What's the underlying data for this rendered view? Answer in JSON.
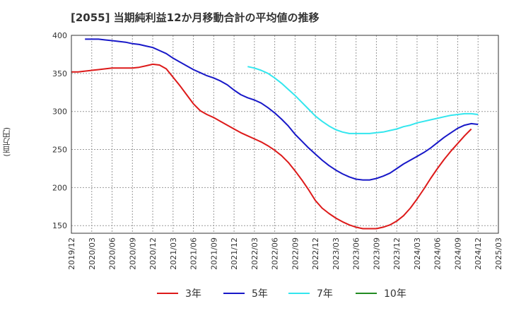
{
  "title": "[2055]  当期純利益12か月移動合計の平均値の推移",
  "chart_data": {
    "type": "line",
    "title": "[2055]  当期純利益12か月移動合計の平均値の推移",
    "ylabel": "(百万円)",
    "xlabel": "",
    "ylim": [
      140,
      400
    ],
    "yticks": [
      150,
      200,
      250,
      300,
      350,
      400
    ],
    "xlim": [
      "2019-12",
      "2025-03"
    ],
    "x_tick_labels": [
      "2019/12",
      "2020/03",
      "2020/06",
      "2020/09",
      "2020/12",
      "2021/03",
      "2021/06",
      "2021/09",
      "2021/12",
      "2022/03",
      "2022/06",
      "2022/09",
      "2022/12",
      "2023/03",
      "2023/06",
      "2023/09",
      "2023/12",
      "2024/03",
      "2024/06",
      "2024/09",
      "2024/12",
      "2025/03"
    ],
    "grid": true,
    "legend_position": "bottom",
    "series": [
      {
        "name": "3年",
        "color": "#dd1a1a",
        "points": [
          [
            "2019-12",
            352
          ],
          [
            "2020-01",
            352
          ],
          [
            "2020-02",
            353
          ],
          [
            "2020-03",
            354
          ],
          [
            "2020-04",
            355
          ],
          [
            "2020-05",
            356
          ],
          [
            "2020-06",
            357
          ],
          [
            "2020-07",
            357
          ],
          [
            "2020-08",
            357
          ],
          [
            "2020-09",
            357
          ],
          [
            "2020-10",
            358
          ],
          [
            "2020-11",
            360
          ],
          [
            "2020-12",
            362
          ],
          [
            "2021-01",
            361
          ],
          [
            "2021-02",
            356
          ],
          [
            "2021-03",
            345
          ],
          [
            "2021-04",
            334
          ],
          [
            "2021-05",
            322
          ],
          [
            "2021-06",
            310
          ],
          [
            "2021-07",
            301
          ],
          [
            "2021-08",
            296
          ],
          [
            "2021-09",
            292
          ],
          [
            "2021-10",
            287
          ],
          [
            "2021-11",
            282
          ],
          [
            "2021-12",
            277
          ],
          [
            "2022-01",
            272
          ],
          [
            "2022-02",
            268
          ],
          [
            "2022-03",
            264
          ],
          [
            "2022-04",
            260
          ],
          [
            "2022-05",
            255
          ],
          [
            "2022-06",
            249
          ],
          [
            "2022-07",
            242
          ],
          [
            "2022-08",
            233
          ],
          [
            "2022-09",
            222
          ],
          [
            "2022-10",
            210
          ],
          [
            "2022-11",
            197
          ],
          [
            "2022-12",
            183
          ],
          [
            "2023-01",
            173
          ],
          [
            "2023-02",
            166
          ],
          [
            "2023-03",
            160
          ],
          [
            "2023-04",
            155
          ],
          [
            "2023-05",
            151
          ],
          [
            "2023-06",
            148
          ],
          [
            "2023-07",
            146
          ],
          [
            "2023-08",
            146
          ],
          [
            "2023-09",
            146
          ],
          [
            "2023-10",
            148
          ],
          [
            "2023-11",
            151
          ],
          [
            "2023-12",
            156
          ],
          [
            "2024-01",
            163
          ],
          [
            "2024-02",
            173
          ],
          [
            "2024-03",
            185
          ],
          [
            "2024-04",
            198
          ],
          [
            "2024-05",
            212
          ],
          [
            "2024-06",
            225
          ],
          [
            "2024-07",
            237
          ],
          [
            "2024-08",
            248
          ],
          [
            "2024-09",
            258
          ],
          [
            "2024-10",
            268
          ],
          [
            "2024-11",
            277
          ]
        ]
      },
      {
        "name": "5年",
        "color": "#1818c8",
        "points": [
          [
            "2020-02",
            395
          ],
          [
            "2020-03",
            395
          ],
          [
            "2020-04",
            395
          ],
          [
            "2020-05",
            394
          ],
          [
            "2020-06",
            393
          ],
          [
            "2020-07",
            392
          ],
          [
            "2020-08",
            391
          ],
          [
            "2020-09",
            389
          ],
          [
            "2020-10",
            388
          ],
          [
            "2020-11",
            386
          ],
          [
            "2020-12",
            384
          ],
          [
            "2021-01",
            380
          ],
          [
            "2021-02",
            376
          ],
          [
            "2021-03",
            370
          ],
          [
            "2021-04",
            365
          ],
          [
            "2021-05",
            360
          ],
          [
            "2021-06",
            355
          ],
          [
            "2021-07",
            351
          ],
          [
            "2021-08",
            347
          ],
          [
            "2021-09",
            344
          ],
          [
            "2021-10",
            340
          ],
          [
            "2021-11",
            335
          ],
          [
            "2021-12",
            328
          ],
          [
            "2022-01",
            322
          ],
          [
            "2022-02",
            318
          ],
          [
            "2022-03",
            315
          ],
          [
            "2022-04",
            311
          ],
          [
            "2022-05",
            305
          ],
          [
            "2022-06",
            298
          ],
          [
            "2022-07",
            290
          ],
          [
            "2022-08",
            281
          ],
          [
            "2022-09",
            270
          ],
          [
            "2022-10",
            261
          ],
          [
            "2022-11",
            252
          ],
          [
            "2022-12",
            244
          ],
          [
            "2023-01",
            236
          ],
          [
            "2023-02",
            229
          ],
          [
            "2023-03",
            223
          ],
          [
            "2023-04",
            218
          ],
          [
            "2023-05",
            214
          ],
          [
            "2023-06",
            211
          ],
          [
            "2023-07",
            210
          ],
          [
            "2023-08",
            210
          ],
          [
            "2023-09",
            212
          ],
          [
            "2023-10",
            215
          ],
          [
            "2023-11",
            219
          ],
          [
            "2023-12",
            225
          ],
          [
            "2024-01",
            231
          ],
          [
            "2024-02",
            236
          ],
          [
            "2024-03",
            241
          ],
          [
            "2024-04",
            246
          ],
          [
            "2024-05",
            252
          ],
          [
            "2024-06",
            259
          ],
          [
            "2024-07",
            266
          ],
          [
            "2024-08",
            272
          ],
          [
            "2024-09",
            278
          ],
          [
            "2024-10",
            282
          ],
          [
            "2024-11",
            284
          ],
          [
            "2024-12",
            283
          ]
        ]
      },
      {
        "name": "7年",
        "color": "#33e6ee",
        "points": [
          [
            "2022-02",
            359
          ],
          [
            "2022-03",
            357
          ],
          [
            "2022-04",
            354
          ],
          [
            "2022-05",
            350
          ],
          [
            "2022-06",
            344
          ],
          [
            "2022-07",
            337
          ],
          [
            "2022-08",
            329
          ],
          [
            "2022-09",
            321
          ],
          [
            "2022-10",
            312
          ],
          [
            "2022-11",
            303
          ],
          [
            "2022-12",
            294
          ],
          [
            "2023-01",
            287
          ],
          [
            "2023-02",
            281
          ],
          [
            "2023-03",
            276
          ],
          [
            "2023-04",
            273
          ],
          [
            "2023-05",
            271
          ],
          [
            "2023-06",
            271
          ],
          [
            "2023-07",
            271
          ],
          [
            "2023-08",
            271
          ],
          [
            "2023-09",
            272
          ],
          [
            "2023-10",
            273
          ],
          [
            "2023-11",
            275
          ],
          [
            "2023-12",
            277
          ],
          [
            "2024-01",
            280
          ],
          [
            "2024-02",
            282
          ],
          [
            "2024-03",
            285
          ],
          [
            "2024-04",
            287
          ],
          [
            "2024-05",
            289
          ],
          [
            "2024-06",
            291
          ],
          [
            "2024-07",
            293
          ],
          [
            "2024-08",
            295
          ],
          [
            "2024-09",
            296
          ],
          [
            "2024-10",
            297
          ],
          [
            "2024-11",
            297
          ],
          [
            "2024-12",
            296
          ]
        ]
      },
      {
        "name": "10年",
        "color": "#228b22",
        "points": []
      }
    ]
  }
}
